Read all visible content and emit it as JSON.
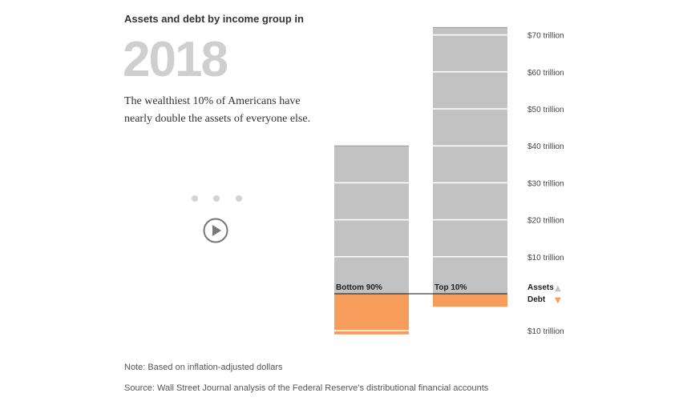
{
  "heading": "Assets and debt by income group in",
  "year": "2018",
  "description": "The wealthiest 10% of Americans have nearly double the assets of everyone else.",
  "controls": {
    "dots": [
      {
        "icon": "dot-icon"
      },
      {
        "icon": "dot-icon"
      },
      {
        "icon": "dot-icon"
      }
    ],
    "play_icon": "play-icon"
  },
  "note": "Note: Based on inflation-adjusted dollars",
  "source": "Source: Wall Street Journal analysis of the Federal Reserve’s distributional financial accounts",
  "chart_data": {
    "type": "bar",
    "categories": [
      "Bottom 90%",
      "Top 10%"
    ],
    "series": [
      {
        "name": "Assets",
        "values": [
          40,
          72
        ],
        "color": "#c2c2c2",
        "direction": "up"
      },
      {
        "name": "Debt",
        "values": [
          11,
          3.5
        ],
        "color": "#f79d5c",
        "direction": "down"
      }
    ],
    "y_ticks_up": [
      {
        "value": 70,
        "label": "$70 trillion"
      },
      {
        "value": 60,
        "label": "$60 trillion"
      },
      {
        "value": 50,
        "label": "$50 trillion"
      },
      {
        "value": 40,
        "label": "$40 trillion"
      },
      {
        "value": 30,
        "label": "$30 trillion"
      },
      {
        "value": 20,
        "label": "$20 trillion"
      },
      {
        "value": 10,
        "label": "$10 trillion"
      }
    ],
    "y_ticks_down": [
      {
        "value": 10,
        "label": "$10 trillion"
      }
    ],
    "legend": [
      {
        "label": "Assets",
        "symbol": "▲",
        "color": "#c2c2c2"
      },
      {
        "label": "Debt",
        "symbol": "▼",
        "color": "#f79d5c"
      }
    ],
    "segment_step": 10,
    "legend_position": "right"
  }
}
